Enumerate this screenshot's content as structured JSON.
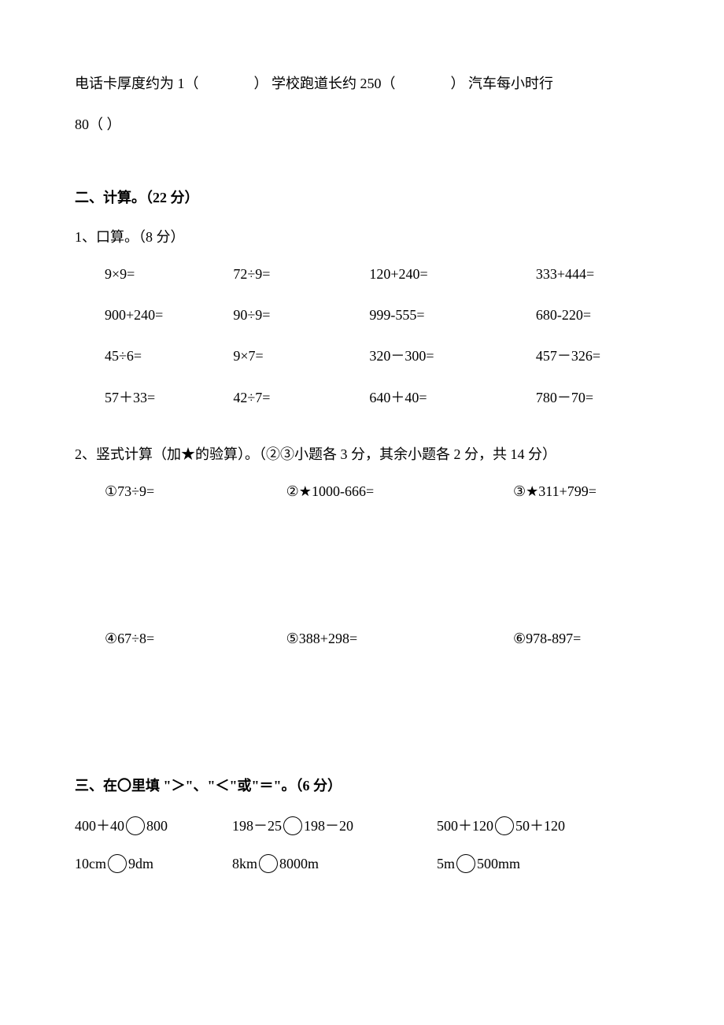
{
  "top": {
    "line1_part1": "电话卡厚度约为 1（",
    "line1_part2": "）  学校跑道长约 250（",
    "line1_part3": "）  汽车每小时行",
    "line2": "80（        ）"
  },
  "section2": {
    "title": "二、计算。（22 分）",
    "sub1": "1、口算。（8 分）",
    "mental": [
      [
        "9×9=",
        "72÷9=",
        "120+240=",
        "333+444="
      ],
      [
        "900+240=",
        "90÷9=",
        "999-555=",
        "680-220="
      ],
      [
        "45÷6=",
        "9×7=",
        "320－300=",
        "457－326="
      ],
      [
        "57＋33=",
        "42÷7=",
        "640＋40=",
        "780－70="
      ]
    ],
    "sub2": "2、竖式计算（加★的验算）。（②③小题各 3 分，其余小题各 2 分，共 14 分）",
    "vertical_row1": [
      "①73÷9=",
      "②★1000-666=",
      "③★311+799="
    ],
    "vertical_row2": [
      "④67÷8=",
      "⑤388+298=",
      "⑥978-897="
    ]
  },
  "section3": {
    "title": "三、在〇里填 \"＞\"、\"＜\"或\"＝\"。（6 分）",
    "rows": [
      [
        {
          "left": "400＋40",
          "right": "800"
        },
        {
          "left": "198－25",
          "right": "198－20"
        },
        {
          "left": "500＋120",
          "right": "50＋120"
        }
      ],
      [
        {
          "left": "10cm",
          "right": "9dm"
        },
        {
          "left": "8km",
          "right": "8000m"
        },
        {
          "left": "5m",
          "right": "500mm"
        }
      ]
    ]
  }
}
